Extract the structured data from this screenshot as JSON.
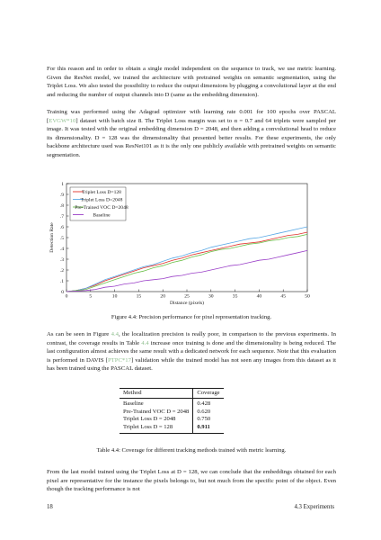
{
  "paragraphs": {
    "p1": "For this reason and in order to obtain a single model independent on the sequence to track, we use metric learning. Given the ResNet model, we trained the architecture with pretrained weights on semantic segmentation, using the Triplet Loss. We also tested the possibility to reduce the output dimensions by plugging a convolutional layer at the end and reducing the number of output channels into D (same as the embedding dimension).",
    "p2_a": "Training was performed using the Adagrad optimizer with learning rate 0.001 for 100 epochs over PASCAL [",
    "p2_ref": "EVGW*10",
    "p2_b": "] dataset with batch size 8. The Triplet Loss margin was set to α = 0.7 and 64 triplets were sampled per image. It was tested with the original embedding dimension D = 2048, and then adding a convolutional head to reduce its dimensionality. D = 128 was the dimensionality that presented better results. For these experiments, the only backbone architecture used was ResNet101 as it is the only one publicly available with pretrained weights on semantic segmentation.",
    "p3_a": "As can be seen in Figure ",
    "p3_ref1": "4.4",
    "p3_b": ", the localization precision is really poor, in comparison to the previous experiments. In contrast, the coverage results in Table ",
    "p3_ref2": "4.4",
    "p3_c": " increase once training is done and the dimensionality is being reduced. The last configuration almost achieves the same result with a dedicated network for each sequence. Note that this evaluation is performed in DAVIS [",
    "p3_ref3": "PTPC*17",
    "p3_d": "] validation while the trained model has not seen any images from this dataset as it has been trained using the PASCAL dataset.",
    "p4": "From the last model trained using the Triplet Loss at D = 128, we can conclude that the embeddings obtained for each pixel are representative for the instance the pixels belongs to, but not much from the specific point of the object. Even though the tracking performance is not"
  },
  "figure": {
    "caption": "Figure 4.4: Precision performance for pixel representation tracking."
  },
  "table": {
    "caption": "Table 4.4: Coverage for different tracking methods trained with metric learning.",
    "headers": [
      "Method",
      "Coverage"
    ],
    "rows": [
      [
        "Baseline",
        "0.428"
      ],
      [
        "Pre-Trained VOC D = 2048",
        "0.620"
      ],
      [
        "Triplet Loss D = 2048",
        "0.750"
      ],
      [
        "Triplet Loss D = 128",
        "0.911"
      ]
    ]
  },
  "footer": {
    "page_number": "18",
    "section": "4.3 Experiments"
  },
  "chart_data": {
    "type": "line",
    "xlabel": "Distance (pixels)",
    "ylabel": "Detection Rate",
    "xlim": [
      0,
      50
    ],
    "ylim": [
      0,
      1
    ],
    "xticks": [
      "0",
      "5",
      "10",
      "15",
      "20",
      "25",
      "30",
      "35",
      "40",
      "45",
      "50"
    ],
    "yticks": [
      "0",
      ".1",
      ".2",
      ".3",
      ".4",
      ".5",
      ".6",
      ".7",
      ".8",
      ".9",
      "1"
    ],
    "legend_position": "top-left",
    "x": [
      0,
      2,
      4,
      6,
      8,
      10,
      12,
      14,
      16,
      18,
      20,
      22,
      24,
      26,
      28,
      30,
      32,
      34,
      36,
      38,
      40,
      42,
      44,
      46,
      48,
      50
    ],
    "series": [
      {
        "name": "Triplet Loss D=128",
        "color": "#e0302a",
        "values": [
          0,
          0.01,
          0.03,
          0.06,
          0.1,
          0.13,
          0.16,
          0.19,
          0.22,
          0.24,
          0.26,
          0.29,
          0.31,
          0.34,
          0.36,
          0.38,
          0.4,
          0.42,
          0.44,
          0.45,
          0.46,
          0.48,
          0.5,
          0.52,
          0.53,
          0.55
        ]
      },
      {
        "name": "Triplet Loss D=2048",
        "color": "#5aa9e6",
        "values": [
          0,
          0.01,
          0.03,
          0.07,
          0.11,
          0.14,
          0.17,
          0.2,
          0.23,
          0.25,
          0.28,
          0.31,
          0.33,
          0.36,
          0.38,
          0.41,
          0.43,
          0.45,
          0.47,
          0.49,
          0.5,
          0.52,
          0.54,
          0.56,
          0.58,
          0.6
        ]
      },
      {
        "name": "Pre-Trained VOC D=2048",
        "color": "#6cc04a",
        "values": [
          0,
          0.01,
          0.02,
          0.05,
          0.08,
          0.11,
          0.14,
          0.17,
          0.19,
          0.22,
          0.24,
          0.27,
          0.29,
          0.32,
          0.34,
          0.37,
          0.39,
          0.4,
          0.42,
          0.44,
          0.45,
          0.47,
          0.48,
          0.5,
          0.51,
          0.53
        ]
      },
      {
        "name": "Baseline",
        "color": "#9b40c8",
        "values": [
          0,
          0.005,
          0.01,
          0.02,
          0.04,
          0.05,
          0.07,
          0.08,
          0.1,
          0.11,
          0.12,
          0.14,
          0.15,
          0.17,
          0.18,
          0.2,
          0.22,
          0.24,
          0.25,
          0.27,
          0.29,
          0.3,
          0.32,
          0.34,
          0.36,
          0.38
        ]
      }
    ]
  }
}
